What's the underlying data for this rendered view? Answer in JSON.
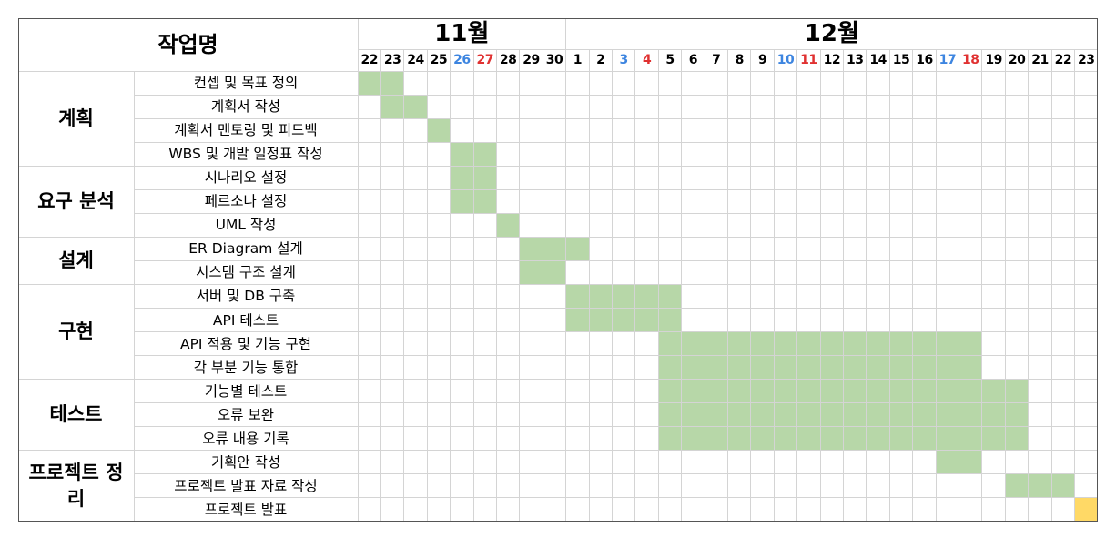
{
  "header": {
    "title": "작업명",
    "months": [
      {
        "label": "11월",
        "start": 0,
        "span": 9
      },
      {
        "label": "12월",
        "start": 9,
        "span": 23
      }
    ]
  },
  "days": [
    {
      "label": "22"
    },
    {
      "label": "23"
    },
    {
      "label": "24"
    },
    {
      "label": "25"
    },
    {
      "label": "26",
      "tone": "sat"
    },
    {
      "label": "27",
      "tone": "sun"
    },
    {
      "label": "28"
    },
    {
      "label": "29"
    },
    {
      "label": "30"
    },
    {
      "label": "1"
    },
    {
      "label": "2"
    },
    {
      "label": "3",
      "tone": "sat"
    },
    {
      "label": "4",
      "tone": "sun"
    },
    {
      "label": "5"
    },
    {
      "label": "6"
    },
    {
      "label": "7"
    },
    {
      "label": "8"
    },
    {
      "label": "9"
    },
    {
      "label": "10",
      "tone": "sat"
    },
    {
      "label": "11",
      "tone": "sun"
    },
    {
      "label": "12"
    },
    {
      "label": "13"
    },
    {
      "label": "14"
    },
    {
      "label": "15"
    },
    {
      "label": "16"
    },
    {
      "label": "17",
      "tone": "sat"
    },
    {
      "label": "18",
      "tone": "sun"
    },
    {
      "label": "19"
    },
    {
      "label": "20"
    },
    {
      "label": "21"
    },
    {
      "label": "22"
    },
    {
      "label": "23"
    }
  ],
  "colors": {
    "bar": "#b7d7a8",
    "final": "#ffd966",
    "saturday": "#3d85e0",
    "sunday": "#e03131"
  },
  "phases": [
    {
      "name": "계획",
      "tasks": [
        {
          "name": "컨셉 및 목표 정의",
          "start": 0,
          "span": 2
        },
        {
          "name": "계획서 작성",
          "start": 1,
          "span": 2
        },
        {
          "name": "계획서 멘토링 및 피드백",
          "start": 3,
          "span": 1
        },
        {
          "name": "WBS 및 개발 일정표 작성",
          "start": 4,
          "span": 2
        }
      ]
    },
    {
      "name": "요구 분석",
      "tasks": [
        {
          "name": "시나리오 설정",
          "start": 4,
          "span": 2
        },
        {
          "name": "페르소나 설정",
          "start": 4,
          "span": 2
        },
        {
          "name": "UML 작성",
          "start": 6,
          "span": 1
        }
      ]
    },
    {
      "name": "설계",
      "tasks": [
        {
          "name": "ER Diagram 설계",
          "start": 7,
          "span": 3
        },
        {
          "name": "시스템 구조 설계",
          "start": 7,
          "span": 2
        }
      ]
    },
    {
      "name": "구현",
      "tasks": [
        {
          "name": "서버 및 DB 구축",
          "start": 9,
          "span": 5
        },
        {
          "name": "API 테스트",
          "start": 9,
          "span": 5
        },
        {
          "name": "API 적용 및 기능 구현",
          "start": 13,
          "span": 14
        },
        {
          "name": "각 부분 기능 통합",
          "start": 13,
          "span": 14
        }
      ]
    },
    {
      "name": "테스트",
      "tasks": [
        {
          "name": "기능별 테스트",
          "start": 13,
          "span": 16
        },
        {
          "name": "오류 보완",
          "start": 13,
          "span": 16
        },
        {
          "name": "오류 내용 기록",
          "start": 13,
          "span": 16
        }
      ]
    },
    {
      "name": "프로젝트 정리",
      "tasks": [
        {
          "name": "기획안 작성",
          "start": 25,
          "span": 2
        },
        {
          "name": "프로젝트 발표 자료 작성",
          "start": 28,
          "span": 3
        },
        {
          "name": "프로젝트 발표",
          "start": 31,
          "span": 1,
          "final": true
        }
      ]
    }
  ]
}
